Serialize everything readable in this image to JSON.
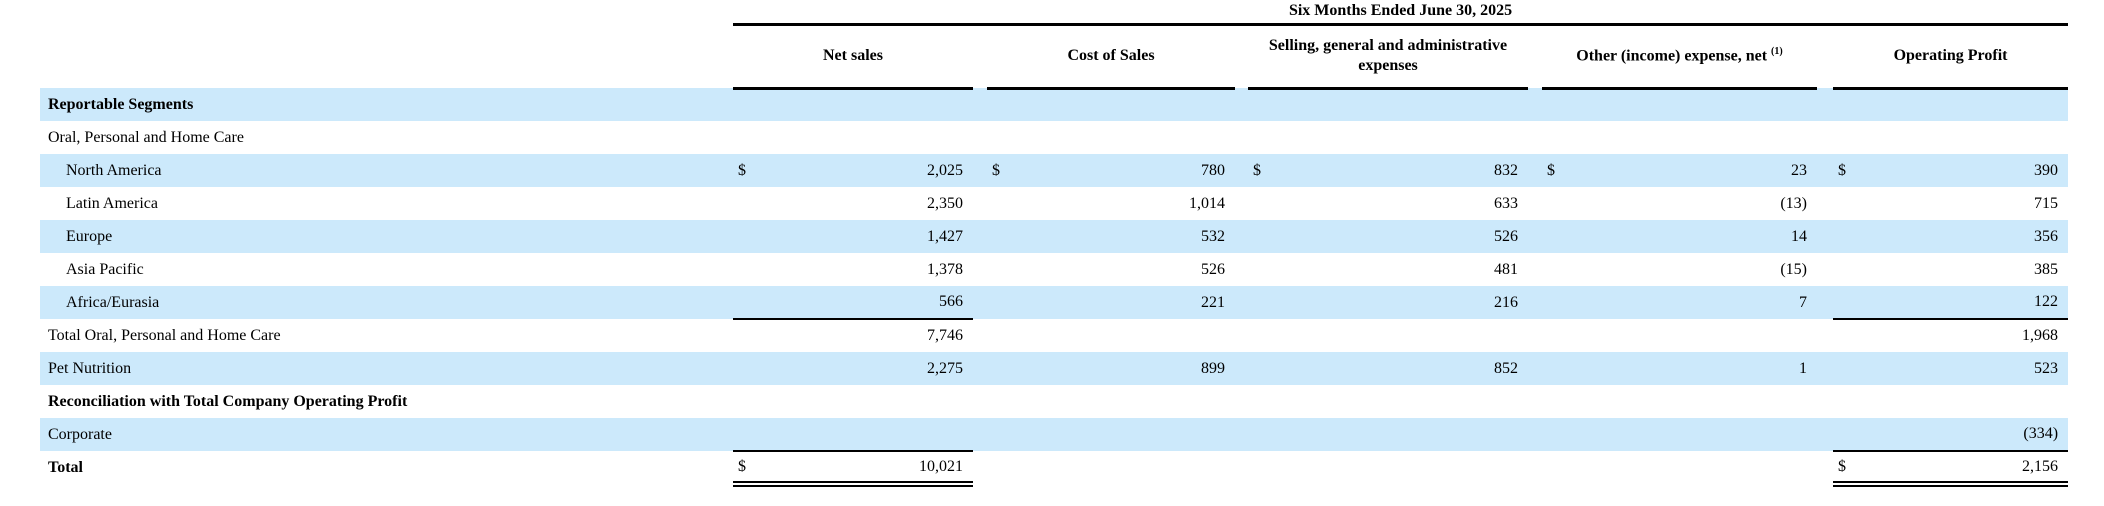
{
  "header": {
    "period": "Six Months Ended June 30, 2025",
    "columns": [
      {
        "label": "Net sales",
        "sup": ""
      },
      {
        "label": "Cost of Sales",
        "sup": ""
      },
      {
        "label": "Selling, general and administrative expenses",
        "sup": ""
      },
      {
        "label": "Other (income) expense, net",
        "sup": "(1)"
      },
      {
        "label": "Operating Profit",
        "sup": ""
      }
    ]
  },
  "rows": [
    {
      "label": "Reportable Segments",
      "dollars": [
        "",
        "",
        "",
        "",
        ""
      ],
      "values": [
        "",
        "",
        "",
        "",
        ""
      ]
    },
    {
      "label": "Oral, Personal and Home Care",
      "dollars": [
        "",
        "",
        "",
        "",
        ""
      ],
      "values": [
        "",
        "",
        "",
        "",
        ""
      ]
    },
    {
      "label": "North America",
      "dollars": [
        "$",
        "$",
        "$",
        "$",
        "$"
      ],
      "values": [
        "2,025",
        "780",
        "832",
        "23",
        "390"
      ]
    },
    {
      "label": "Latin America",
      "dollars": [
        "",
        "",
        "",
        "",
        ""
      ],
      "values": [
        "2,350",
        "1,014",
        "633",
        "(13)",
        "715"
      ]
    },
    {
      "label": "Europe",
      "dollars": [
        "",
        "",
        "",
        "",
        ""
      ],
      "values": [
        "1,427",
        "532",
        "526",
        "14",
        "356"
      ]
    },
    {
      "label": "Asia Pacific",
      "dollars": [
        "",
        "",
        "",
        "",
        ""
      ],
      "values": [
        "1,378",
        "526",
        "481",
        "(15)",
        "385"
      ]
    },
    {
      "label": "Africa/Eurasia",
      "dollars": [
        "",
        "",
        "",
        "",
        ""
      ],
      "values": [
        "566",
        "221",
        "216",
        "7",
        "122"
      ]
    },
    {
      "label": "Total Oral, Personal and Home Care",
      "dollars": [
        "",
        "",
        "",
        "",
        ""
      ],
      "values": [
        "7,746",
        "",
        "",
        "",
        "1,968"
      ]
    },
    {
      "label": "Pet Nutrition",
      "dollars": [
        "",
        "",
        "",
        "",
        ""
      ],
      "values": [
        "2,275",
        "899",
        "852",
        "1",
        "523"
      ]
    },
    {
      "label": "Reconciliation with Total Company Operating Profit",
      "dollars": [
        "",
        "",
        "",
        "",
        ""
      ],
      "values": [
        "",
        "",
        "",
        "",
        ""
      ]
    },
    {
      "label": "Corporate",
      "dollars": [
        "",
        "",
        "",
        "",
        ""
      ],
      "values": [
        "",
        "",
        "",
        "",
        "(334)"
      ]
    },
    {
      "label": "Total",
      "dollars": [
        "$",
        "",
        "",
        "",
        "$"
      ],
      "values": [
        "10,021",
        "",
        "",
        "",
        "2,156"
      ]
    }
  ],
  "colors": {
    "row_shade": "#cce9fb",
    "rule": "#000000",
    "text": "#000000"
  }
}
